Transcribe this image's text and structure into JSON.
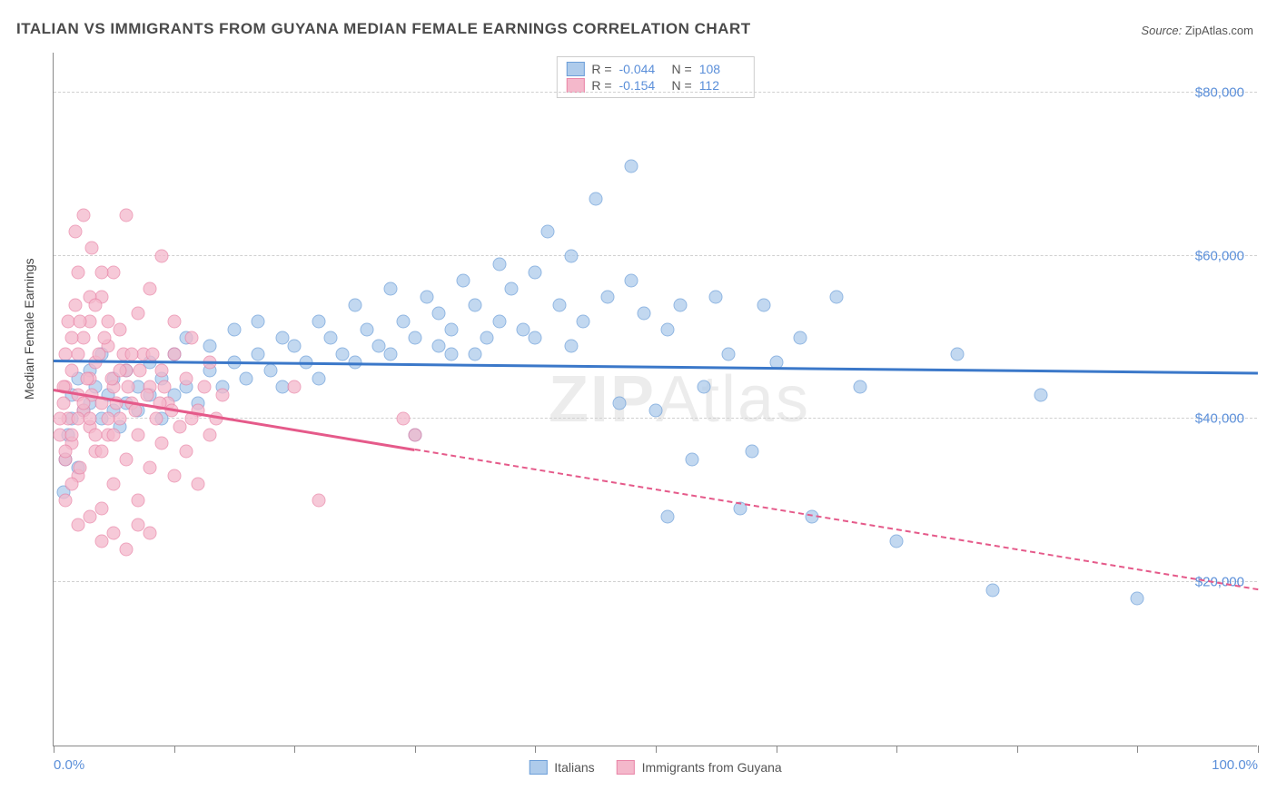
{
  "title": "ITALIAN VS IMMIGRANTS FROM GUYANA MEDIAN FEMALE EARNINGS CORRELATION CHART",
  "source_label": "Source:",
  "source_value": "ZipAtlas.com",
  "ylabel": "Median Female Earnings",
  "watermark": "ZIPAtlas",
  "chart": {
    "type": "scatter",
    "xlim": [
      0,
      100
    ],
    "ylim": [
      0,
      85000
    ],
    "xtick_positions": [
      0,
      10,
      20,
      30,
      40,
      50,
      60,
      70,
      80,
      90,
      100
    ],
    "xaxis_labels": [
      {
        "pos": 0,
        "text": "0.0%"
      },
      {
        "pos": 100,
        "text": "100.0%"
      }
    ],
    "ytick_labels": [
      {
        "val": 20000,
        "text": "$20,000"
      },
      {
        "val": 40000,
        "text": "$40,000"
      },
      {
        "val": 60000,
        "text": "$60,000"
      },
      {
        "val": 80000,
        "text": "$80,000"
      }
    ],
    "gridline_color": "#d0d0d0",
    "background_color": "#ffffff",
    "series": [
      {
        "key": "italians",
        "label": "Italians",
        "fill": "#aecbeb",
        "stroke": "#6d9fd9",
        "r_value": "-0.044",
        "n_value": "108",
        "trend": {
          "x1": 0,
          "y1": 47000,
          "x2": 100,
          "y2": 45500,
          "solid_to_x": 100,
          "color": "#3b78c9"
        },
        "points": [
          [
            0.8,
            31000
          ],
          [
            1.0,
            35000
          ],
          [
            1.2,
            38000
          ],
          [
            1.5,
            40000
          ],
          [
            1.5,
            43000
          ],
          [
            2,
            45000
          ],
          [
            2,
            34000
          ],
          [
            2.5,
            41000
          ],
          [
            3,
            42000
          ],
          [
            3,
            46000
          ],
          [
            3.5,
            44000
          ],
          [
            4,
            40000
          ],
          [
            4,
            48000
          ],
          [
            4.5,
            43000
          ],
          [
            5,
            41000
          ],
          [
            5,
            45000
          ],
          [
            5.5,
            39000
          ],
          [
            6,
            42000
          ],
          [
            6,
            46000
          ],
          [
            7,
            44000
          ],
          [
            7,
            41000
          ],
          [
            8,
            43000
          ],
          [
            8,
            47000
          ],
          [
            9,
            45000
          ],
          [
            9,
            40000
          ],
          [
            10,
            43000
          ],
          [
            10,
            48000
          ],
          [
            11,
            44000
          ],
          [
            11,
            50000
          ],
          [
            12,
            42000
          ],
          [
            13,
            46000
          ],
          [
            13,
            49000
          ],
          [
            14,
            44000
          ],
          [
            15,
            47000
          ],
          [
            15,
            51000
          ],
          [
            16,
            45000
          ],
          [
            17,
            48000
          ],
          [
            17,
            52000
          ],
          [
            18,
            46000
          ],
          [
            19,
            50000
          ],
          [
            19,
            44000
          ],
          [
            20,
            49000
          ],
          [
            21,
            47000
          ],
          [
            22,
            52000
          ],
          [
            22,
            45000
          ],
          [
            23,
            50000
          ],
          [
            24,
            48000
          ],
          [
            25,
            54000
          ],
          [
            25,
            47000
          ],
          [
            26,
            51000
          ],
          [
            27,
            49000
          ],
          [
            28,
            56000
          ],
          [
            28,
            48000
          ],
          [
            29,
            52000
          ],
          [
            30,
            50000
          ],
          [
            31,
            55000
          ],
          [
            32,
            49000
          ],
          [
            32,
            53000
          ],
          [
            33,
            51000
          ],
          [
            34,
            57000
          ],
          [
            35,
            48000
          ],
          [
            35,
            54000
          ],
          [
            36,
            50000
          ],
          [
            37,
            59000
          ],
          [
            37,
            52000
          ],
          [
            38,
            56000
          ],
          [
            39,
            51000
          ],
          [
            40,
            50000
          ],
          [
            40,
            58000
          ],
          [
            41,
            63000
          ],
          [
            42,
            54000
          ],
          [
            43,
            49000
          ],
          [
            43,
            60000
          ],
          [
            44,
            52000
          ],
          [
            45,
            67000
          ],
          [
            46,
            55000
          ],
          [
            47,
            42000
          ],
          [
            48,
            57000
          ],
          [
            48,
            71000
          ],
          [
            49,
            53000
          ],
          [
            50,
            41000
          ],
          [
            51,
            51000
          ],
          [
            51,
            28000
          ],
          [
            52,
            54000
          ],
          [
            53,
            35000
          ],
          [
            54,
            44000
          ],
          [
            55,
            55000
          ],
          [
            56,
            48000
          ],
          [
            57,
            29000
          ],
          [
            58,
            36000
          ],
          [
            59,
            54000
          ],
          [
            60,
            47000
          ],
          [
            62,
            50000
          ],
          [
            63,
            28000
          ],
          [
            65,
            55000
          ],
          [
            67,
            44000
          ],
          [
            70,
            25000
          ],
          [
            75,
            48000
          ],
          [
            78,
            19000
          ],
          [
            82,
            43000
          ],
          [
            90,
            18000
          ],
          [
            30,
            38000
          ],
          [
            33,
            48000
          ]
        ]
      },
      {
        "key": "guyana",
        "label": "Immigrants from Guyana",
        "fill": "#f4b8cb",
        "stroke": "#e986a8",
        "r_value": "-0.154",
        "n_value": "112",
        "trend": {
          "x1": 0,
          "y1": 43500,
          "x2": 100,
          "y2": 19000,
          "solid_to_x": 30,
          "color": "#e55a8a"
        },
        "points": [
          [
            0.5,
            38000
          ],
          [
            0.8,
            42000
          ],
          [
            1,
            35000
          ],
          [
            1,
            44000
          ],
          [
            1.2,
            40000
          ],
          [
            1.5,
            46000
          ],
          [
            1.5,
            37000
          ],
          [
            2,
            43000
          ],
          [
            2,
            48000
          ],
          [
            2,
            33000
          ],
          [
            2.5,
            41000
          ],
          [
            2.5,
            50000
          ],
          [
            3,
            39000
          ],
          [
            3,
            45000
          ],
          [
            3,
            52000
          ],
          [
            3.5,
            36000
          ],
          [
            3.5,
            47000
          ],
          [
            4,
            42000
          ],
          [
            4,
            55000
          ],
          [
            4,
            29000
          ],
          [
            4.5,
            38000
          ],
          [
            4.5,
            49000
          ],
          [
            5,
            44000
          ],
          [
            5,
            58000
          ],
          [
            5,
            32000
          ],
          [
            5.5,
            40000
          ],
          [
            5.5,
            51000
          ],
          [
            6,
            35000
          ],
          [
            6,
            46000
          ],
          [
            6,
            65000
          ],
          [
            6.5,
            42000
          ],
          [
            7,
            38000
          ],
          [
            7,
            53000
          ],
          [
            7,
            30000
          ],
          [
            7.5,
            48000
          ],
          [
            8,
            44000
          ],
          [
            8,
            34000
          ],
          [
            8,
            56000
          ],
          [
            8.5,
            40000
          ],
          [
            9,
            46000
          ],
          [
            9,
            37000
          ],
          [
            9,
            60000
          ],
          [
            9.5,
            42000
          ],
          [
            10,
            48000
          ],
          [
            10,
            33000
          ],
          [
            10,
            52000
          ],
          [
            10.5,
            39000
          ],
          [
            11,
            45000
          ],
          [
            11,
            36000
          ],
          [
            11.5,
            50000
          ],
          [
            12,
            41000
          ],
          [
            12,
            32000
          ],
          [
            13,
            47000
          ],
          [
            13,
            38000
          ],
          [
            14,
            43000
          ],
          [
            2,
            27000
          ],
          [
            3,
            28000
          ],
          [
            4,
            25000
          ],
          [
            5,
            26000
          ],
          [
            6,
            24000
          ],
          [
            7,
            27000
          ],
          [
            8,
            26000
          ],
          [
            1.8,
            63000
          ],
          [
            2.5,
            65000
          ],
          [
            3.2,
            61000
          ],
          [
            1,
            30000
          ],
          [
            1.5,
            32000
          ],
          [
            2.2,
            34000
          ],
          [
            3.8,
            48000
          ],
          [
            4.2,
            50000
          ],
          [
            5.8,
            48000
          ],
          [
            6.2,
            44000
          ],
          [
            7.2,
            46000
          ],
          [
            8.2,
            48000
          ],
          [
            9.2,
            44000
          ],
          [
            1.2,
            52000
          ],
          [
            1.8,
            54000
          ],
          [
            2.8,
            45000
          ],
          [
            3.2,
            43000
          ],
          [
            4.8,
            45000
          ],
          [
            5.2,
            42000
          ],
          [
            6.8,
            41000
          ],
          [
            7.8,
            43000
          ],
          [
            8.8,
            42000
          ],
          [
            9.8,
            41000
          ],
          [
            11.5,
            40000
          ],
          [
            12.5,
            44000
          ],
          [
            13.5,
            40000
          ],
          [
            3,
            55000
          ],
          [
            4,
            58000
          ],
          [
            2,
            58000
          ],
          [
            1,
            48000
          ],
          [
            1.5,
            50000
          ],
          [
            0.8,
            44000
          ],
          [
            0.5,
            40000
          ],
          [
            2.2,
            52000
          ],
          [
            3.5,
            54000
          ],
          [
            4.5,
            52000
          ],
          [
            5.5,
            46000
          ],
          [
            6.5,
            48000
          ],
          [
            20,
            44000
          ],
          [
            22,
            30000
          ],
          [
            29,
            40000
          ],
          [
            30,
            38000
          ],
          [
            1,
            36000
          ],
          [
            1.5,
            38000
          ],
          [
            2,
            40000
          ],
          [
            2.5,
            42000
          ],
          [
            3,
            40000
          ],
          [
            3.5,
            38000
          ],
          [
            4,
            36000
          ],
          [
            4.5,
            40000
          ],
          [
            5,
            38000
          ]
        ]
      }
    ]
  },
  "legend_top": {
    "r_label": "R =",
    "n_label": "N ="
  }
}
